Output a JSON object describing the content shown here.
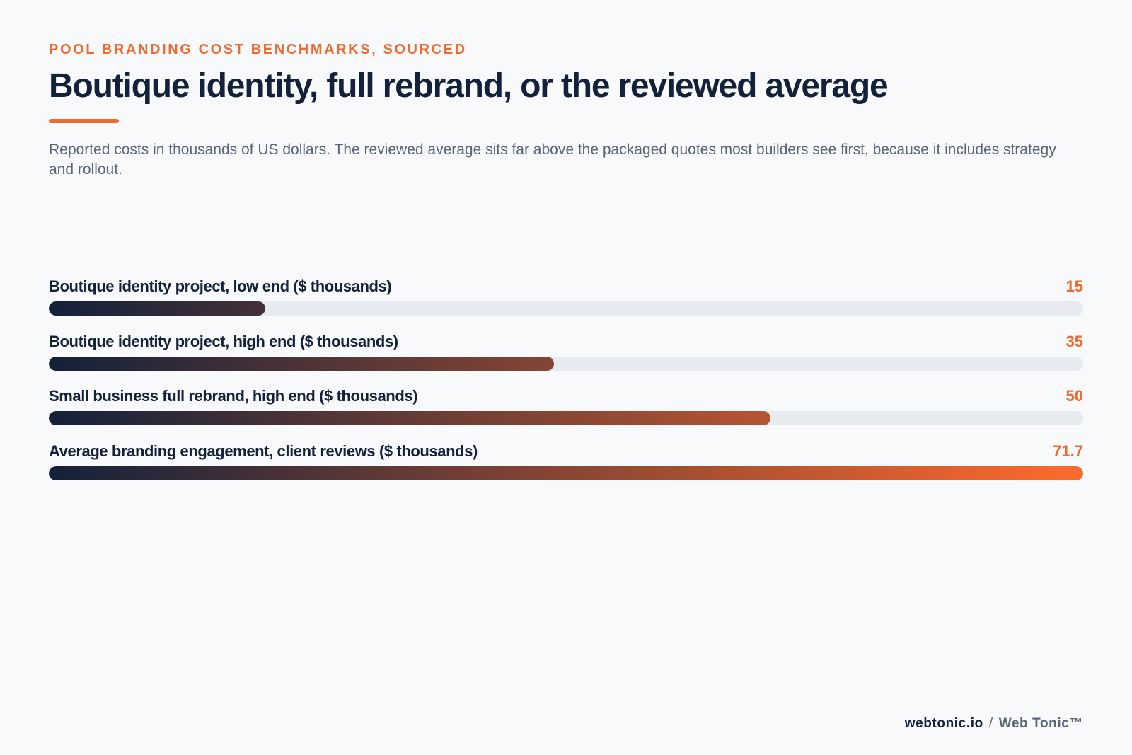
{
  "header": {
    "kicker": "POOL BRANDING COST BENCHMARKS, SOURCED",
    "title": "Boutique identity, full rebrand, or the reviewed average",
    "subtitle": "Reported costs in thousands of US dollars. The reviewed average sits far above the packaged quotes most builders see first, because it includes strategy and rollout."
  },
  "colors": {
    "accent": "#ee6a31",
    "ink": "#13213a",
    "gradient_start": "#13213a",
    "gradient_end": "#ff6b2e",
    "track": "#e7eaee",
    "background": "#f7f9fb"
  },
  "chart_data": {
    "type": "bar",
    "orientation": "horizontal",
    "title": "Boutique identity, full rebrand, or the reviewed average",
    "categories": [
      "Boutique identity project, low end ($ thousands)",
      "Boutique identity project, high end ($ thousands)",
      "Small business full rebrand, high end ($ thousands)",
      "Average branding engagement, client reviews ($ thousands)"
    ],
    "values": [
      15,
      35,
      50,
      71.7
    ],
    "value_labels": [
      "15",
      "35",
      "50",
      "71.7"
    ],
    "xlim": [
      0,
      71.7
    ],
    "grid": false,
    "legend": "none"
  },
  "footer": {
    "site": "webtonic.io",
    "separator": "/",
    "brand": "Web Tonic™"
  }
}
